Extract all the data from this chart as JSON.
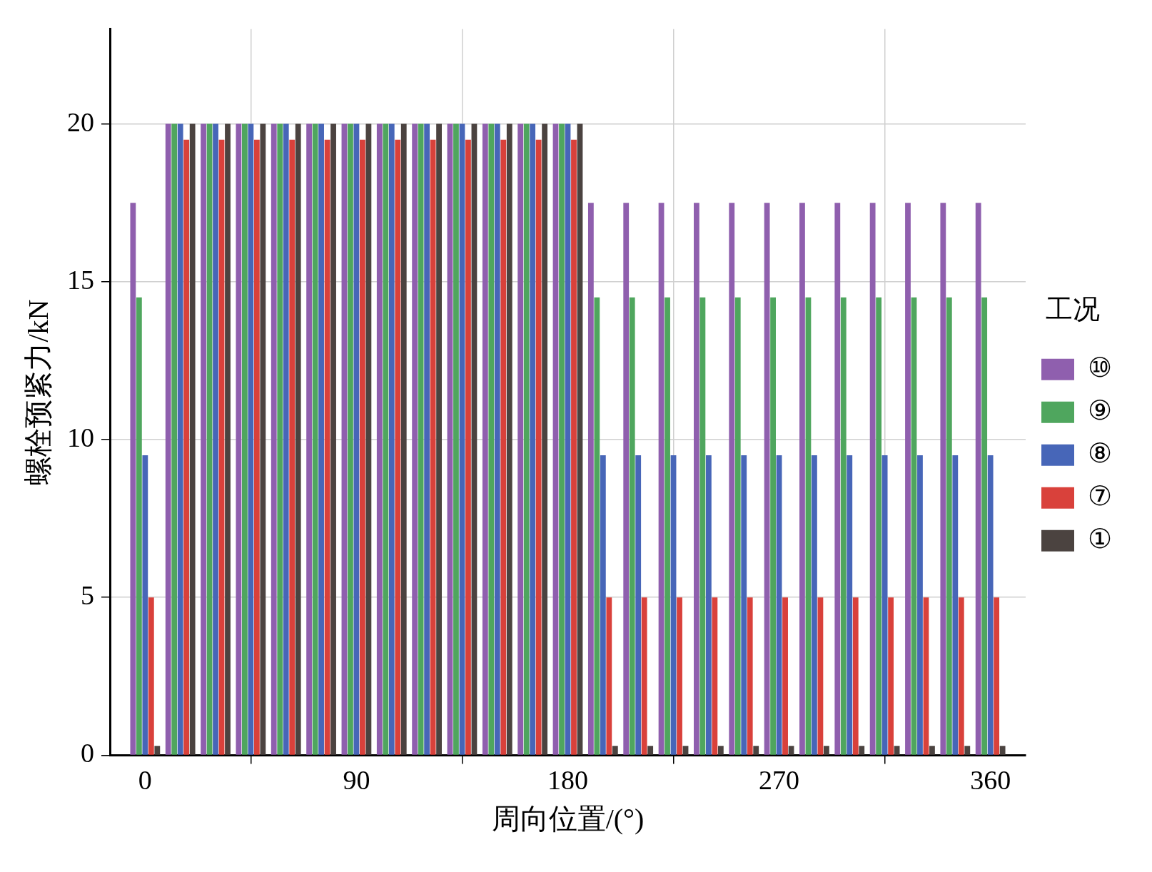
{
  "chart_data": {
    "type": "bar",
    "xlabel": "周向位置/(°)",
    "ylabel": "螺栓预紧力/kN",
    "legend_title": "工况",
    "legend": "right",
    "grid": true,
    "x": [
      0,
      15,
      30,
      45,
      60,
      75,
      90,
      105,
      120,
      135,
      150,
      165,
      180,
      195,
      210,
      225,
      240,
      255,
      270,
      285,
      300,
      315,
      330,
      345,
      360
    ],
    "xlim": [
      -15,
      375
    ],
    "xticks": [
      0,
      90,
      180,
      270,
      360
    ],
    "ylim": [
      0,
      23
    ],
    "yticks": [
      0,
      5,
      10,
      15,
      20
    ],
    "series": [
      {
        "name": "⑩",
        "color": "#8f5fae",
        "values": [
          17.5,
          20,
          20,
          20,
          20,
          20,
          20,
          20,
          20,
          20,
          20,
          20,
          20,
          17.5,
          17.5,
          17.5,
          17.5,
          17.5,
          17.5,
          17.5,
          17.5,
          17.5,
          17.5,
          17.5,
          17.5
        ]
      },
      {
        "name": "⑨",
        "color": "#4fa65e",
        "values": [
          14.5,
          20,
          20,
          20,
          20,
          20,
          20,
          20,
          20,
          20,
          20,
          20,
          20,
          14.5,
          14.5,
          14.5,
          14.5,
          14.5,
          14.5,
          14.5,
          14.5,
          14.5,
          14.5,
          14.5,
          14.5
        ]
      },
      {
        "name": "⑧",
        "color": "#4766b8",
        "values": [
          9.5,
          20,
          20,
          20,
          20,
          20,
          20,
          20,
          20,
          20,
          20,
          20,
          20,
          9.5,
          9.5,
          9.5,
          9.5,
          9.5,
          9.5,
          9.5,
          9.5,
          9.5,
          9.5,
          9.5,
          9.5
        ]
      },
      {
        "name": "⑦",
        "color": "#d9413b",
        "values": [
          5,
          19.5,
          19.5,
          19.5,
          19.5,
          19.5,
          19.5,
          19.5,
          19.5,
          19.5,
          19.5,
          19.5,
          19.5,
          5,
          5,
          5,
          5,
          5,
          5,
          5,
          5,
          5,
          5,
          5,
          5
        ]
      },
      {
        "name": "①",
        "color": "#4b4340",
        "values": [
          0.3,
          20,
          20,
          20,
          20,
          20,
          20,
          20,
          20,
          20,
          20,
          20,
          20,
          0.3,
          0.3,
          0.3,
          0.3,
          0.3,
          0.3,
          0.3,
          0.3,
          0.3,
          0.3,
          0.3,
          0.3
        ]
      }
    ]
  }
}
